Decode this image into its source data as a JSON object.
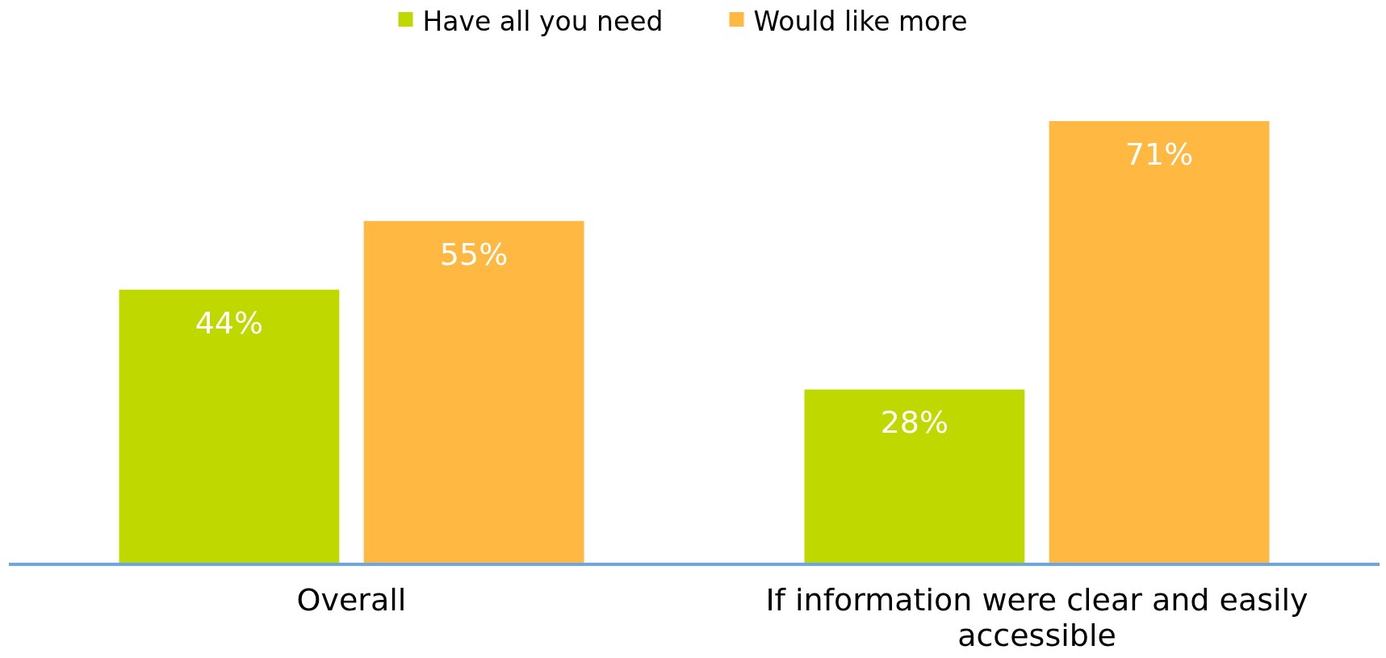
{
  "chart_data": {
    "type": "bar",
    "categories": [
      "Overall",
      "If information were clear and easily accessible"
    ],
    "series": [
      {
        "name": "Have all you need",
        "color": "#bfd800",
        "values": [
          44,
          28
        ],
        "value_labels": [
          "44%",
          "28%"
        ]
      },
      {
        "name": "Would like more",
        "color": "#ffb841",
        "values": [
          55,
          71
        ],
        "value_labels": [
          "55%",
          "71%"
        ]
      }
    ],
    "legend": "top"
  }
}
